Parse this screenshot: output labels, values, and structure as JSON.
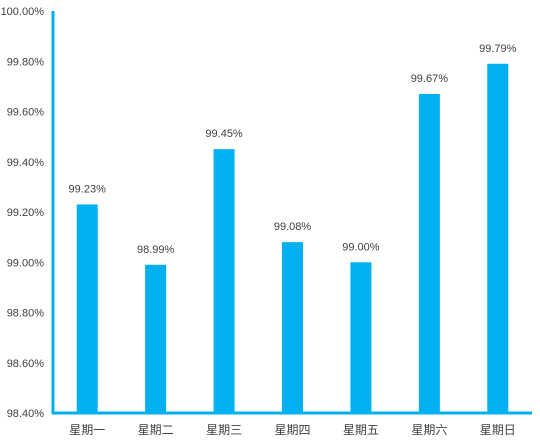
{
  "chart_data": {
    "type": "bar",
    "title": "",
    "xlabel": "",
    "ylabel": "",
    "categories": [
      "星期一",
      "星期二",
      "星期三",
      "星期四",
      "星期五",
      "星期六",
      "星期日"
    ],
    "values": [
      99.23,
      98.99,
      99.45,
      99.08,
      99.0,
      99.67,
      99.79
    ],
    "data_labels": [
      "99.23%",
      "98.99%",
      "99.45%",
      "99.08%",
      "99.00%",
      "99.67%",
      "99.79%"
    ],
    "ylim": [
      98.4,
      100.0
    ],
    "yticks": [
      98.4,
      98.6,
      98.8,
      99.0,
      99.2,
      99.4,
      99.6,
      99.8,
      100.0
    ],
    "ytick_labels": [
      "98.40%",
      "98.60%",
      "98.80%",
      "99.00%",
      "99.20%",
      "99.40%",
      "99.60%",
      "99.80%",
      "100.00%"
    ],
    "grid": false,
    "legend": "none",
    "bar_color": "#00B0F0",
    "axis_color": "#00B0F0"
  }
}
